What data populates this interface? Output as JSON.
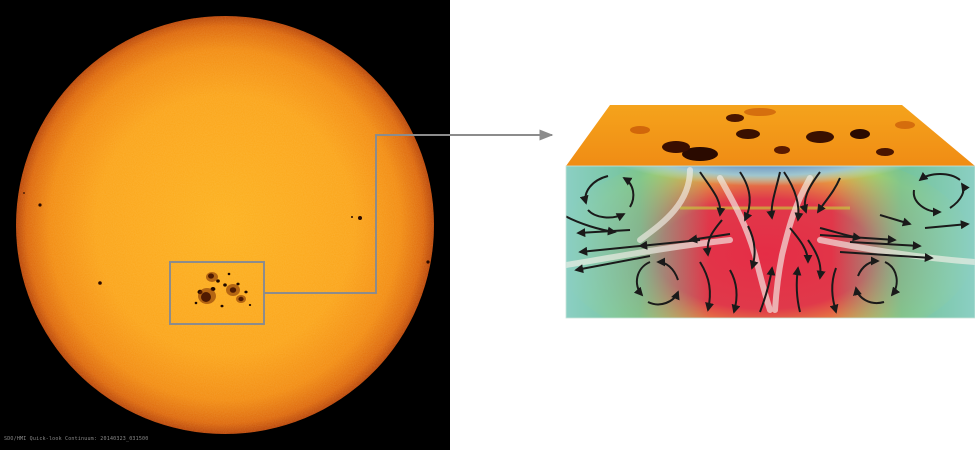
{
  "solar_image": {
    "caption": "SDO/HMI Quick-look Continuum: 20140323_031500",
    "colors": {
      "background": "#000000",
      "disk_center": "#fdb01c",
      "disk_mid": "#f89c14",
      "disk_limb": "#c84d06",
      "spot": "#1a0600"
    }
  },
  "callout": {
    "line_color": "#8c8c8c"
  },
  "cutaway_diagram": {
    "colors": {
      "top_surface": "#f7a21a",
      "blue_zone": "#2b55b0",
      "red_core": "#e0304a",
      "yellow_ring": "#d8d838",
      "green_field": "#6fc08a",
      "teal_edge": "#8ccfc2",
      "flow_light": "#f2f2f2",
      "arrow": "#1a1a1a"
    }
  }
}
